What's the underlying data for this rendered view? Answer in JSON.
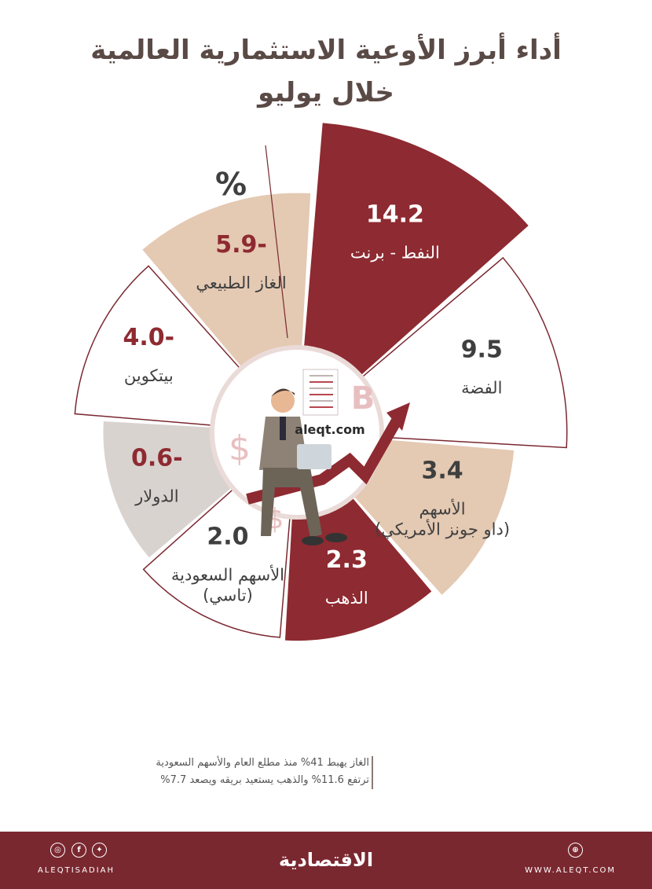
{
  "title_line1": "أداء أبرز الأوعية الاستثمارية العالمية",
  "title_line2": "خلال يوليو",
  "unit": "%",
  "center_label": "aleqt.com",
  "chart_data": {
    "type": "bar",
    "layout": "radial (polar bar)",
    "unit": "%",
    "categories": [
      "النفط - برنت",
      "الفضة",
      "الأسهم (داو جونز الأمريكي)",
      "الذهب",
      "الأسهم السعودية (تاسي)",
      "الدولار",
      "بيتكوين",
      "الغاز الطبيعي"
    ],
    "values": [
      14.2,
      9.5,
      3.4,
      2.3,
      2.0,
      -0.6,
      -4.0,
      -5.9
    ],
    "labels_display": [
      "14.2",
      "9.5",
      "3.4",
      "2.3",
      "2.0",
      "0.6-",
      "4.0-",
      "5.9-"
    ],
    "name_lines": [
      [
        "النفط - برنت"
      ],
      [
        "الفضة"
      ],
      [
        "الأسهم",
        "(داو جونز الأمريكي)"
      ],
      [
        "الذهب"
      ],
      [
        "الأسهم السعودية",
        "(تاسي)"
      ],
      [
        "الدولار"
      ],
      [
        "بيتكوين"
      ],
      [
        "الغاز الطبيعي"
      ]
    ],
    "colors": {
      "crimson": "#8e2a31",
      "beige": "#e4c9b3",
      "grey": "#d9d3d0",
      "white": "#ffffff",
      "outline": "#7a2830",
      "value_dark": "#3f3f3f",
      "value_negative": "#8e2a31"
    }
  },
  "note_line1": "الغاز يهبط 41% منذ مطلع العام والأسهم السعودية",
  "note_line2": "ترتفع 11.6% والذهب يستعيد بريقه ويصعد 7.7%",
  "footer": {
    "brand": "الاقتصادية",
    "left_handle": "ALEQTISADIAH",
    "right_url": "WWW.ALEQT.COM",
    "social_icons": [
      "instagram-icon",
      "facebook-icon",
      "twitter-icon"
    ],
    "background": "#7a2830"
  }
}
